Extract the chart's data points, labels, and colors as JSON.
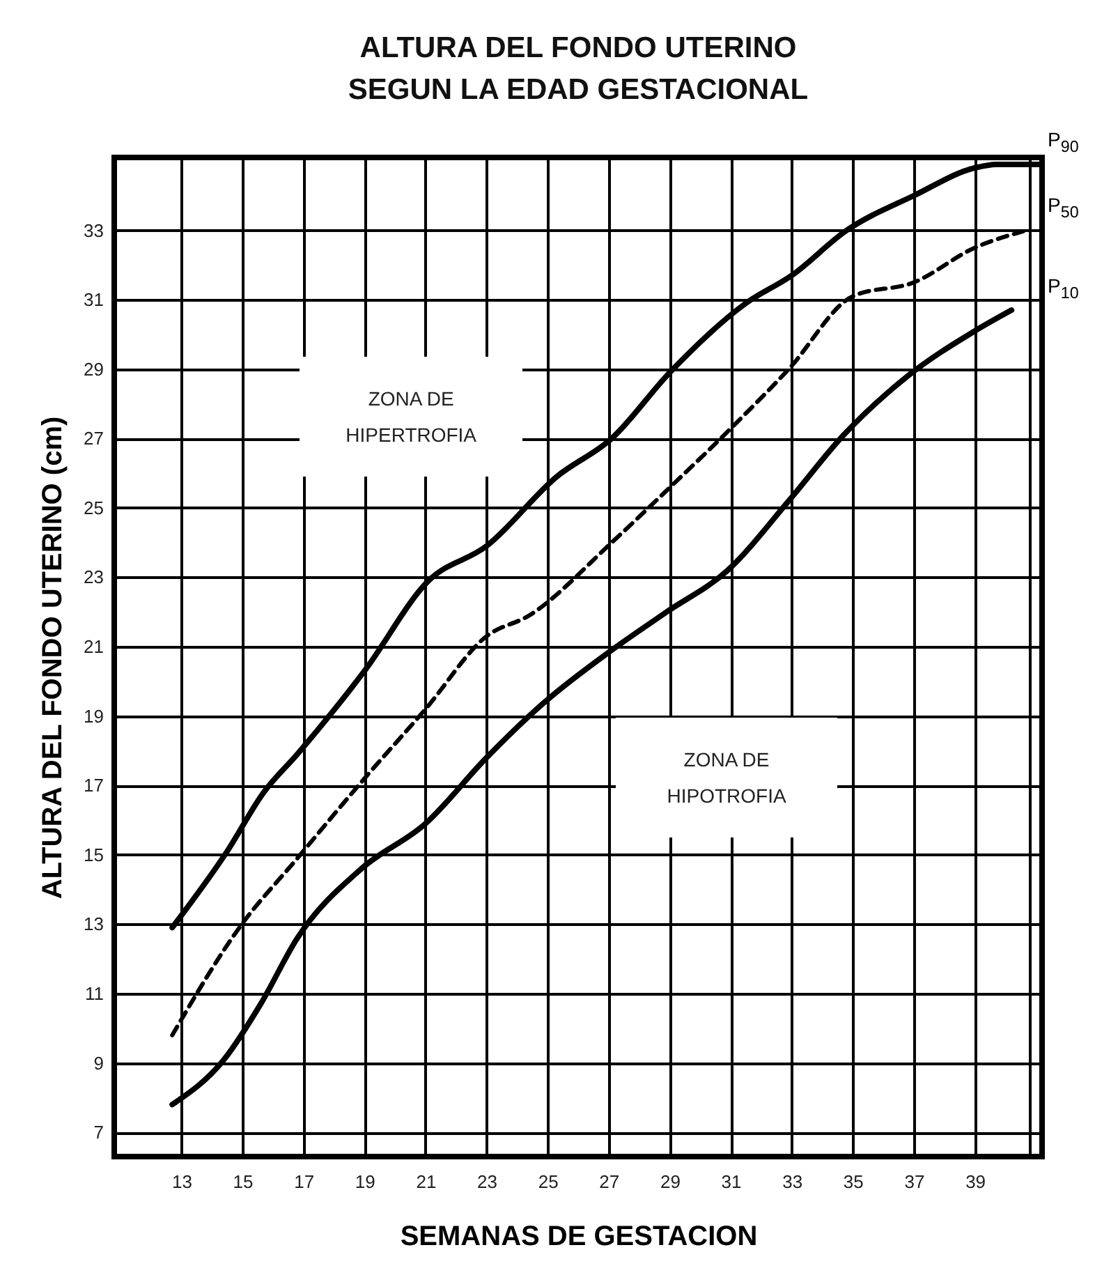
{
  "chart_data": {
    "type": "line",
    "title": "ALTURA DEL FONDO UTERINO\nSEGUN LA EDAD GESTACIONAL",
    "xlabel": "SEMANAS DE GESTACION",
    "ylabel": "ALTURA DEL FONDO UTERINO (cm)",
    "xlim": [
      10.8,
      41.2
    ],
    "xticks": [
      13,
      15,
      17,
      19,
      21,
      23,
      25,
      27,
      29,
      31,
      33,
      35,
      37,
      39,
      {
        "value": 40.8,
        "label": null
      }
    ],
    "ylim": [
      6.3,
      35.1
    ],
    "yticks": [
      7,
      9,
      11,
      13,
      15,
      17,
      19,
      21,
      23,
      25,
      27,
      29,
      31,
      33
    ],
    "grid": true,
    "marker": "none",
    "annotations": [
      "ZONA DE\nHIPERTROFIA",
      "ZONA DE\nHIPOTROFIA"
    ],
    "series": [
      {
        "name": "P$_{90}$",
        "color": "#000000",
        "line_style": "solid",
        "x": [
          12.7,
          14.5,
          15.7,
          16.8,
          19,
          21.1,
          23,
          25.3,
          27.1,
          29,
          31.5,
          33,
          34.8,
          37,
          39,
          39.7,
          41.2
        ],
        "values": [
          12.9,
          15.1,
          16.8,
          17.9,
          20.3,
          22.9,
          23.9,
          25.9,
          27,
          28.9,
          30.9,
          31.7,
          33,
          34,
          34.8,
          34.9,
          34.9
        ]
      },
      {
        "name": "P$_{50}$",
        "color": "#000000",
        "line_style": "dashed",
        "x": [
          12.7,
          14.9,
          16.8,
          19,
          21,
          23,
          24.4,
          27.1,
          28.9,
          30.9,
          32.9,
          35,
          37,
          39,
          40.7
        ],
        "values": [
          9.8,
          12.9,
          14.9,
          17.2,
          19.2,
          21.3,
          21.9,
          24,
          25.5,
          27.2,
          29,
          31.1,
          31.5,
          32.5,
          33
        ]
      },
      {
        "name": "P$_{10}$",
        "color": "#000000",
        "line_style": "solid",
        "x": [
          12.7,
          14.4,
          15.6,
          16.8,
          18.9,
          21,
          23,
          24.9,
          27.1,
          28.9,
          30.9,
          32.9,
          34.7,
          36.8,
          39,
          40.2
        ],
        "values": [
          7.8,
          9.1,
          10.7,
          12.6,
          14.6,
          15.9,
          17.8,
          19.4,
          20.9,
          22,
          23.2,
          25.2,
          27.1,
          28.8,
          30.1,
          30.7
        ]
      }
    ]
  }
}
